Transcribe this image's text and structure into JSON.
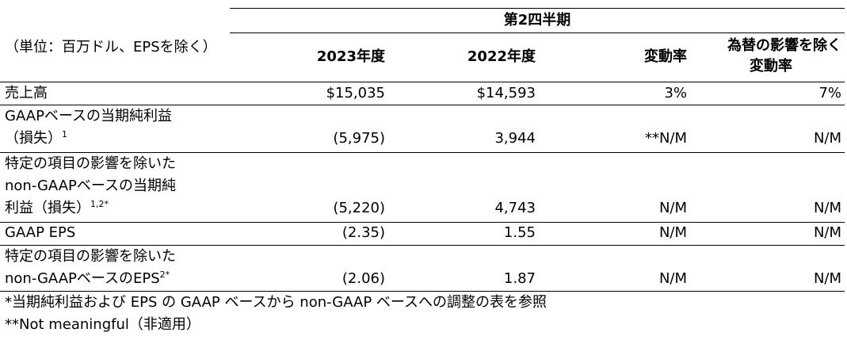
{
  "header": {
    "period_title": "第2四半期",
    "unit_label": "（単位：百万ドル、EPSを除く）",
    "columns": [
      "2023年度",
      "2022年度",
      "変動率",
      "為替の影響を除く変動率"
    ],
    "fx_col_line1": "為替の影響を除く",
    "fx_col_line2": "変動率"
  },
  "rows": [
    {
      "label": "売上高",
      "sup": "",
      "values": [
        "$15,035",
        "$14,593",
        "3%",
        "7%"
      ]
    },
    {
      "label": "GAAPベースの当期純利益（損失）",
      "label_line1": "GAAPベースの当期純利益",
      "label_line2": "（損失）",
      "sup": "1",
      "values": [
        "(5,975)",
        "3,944",
        "**N/M",
        "N/M"
      ]
    },
    {
      "label": "特定の項目の影響を除いたnon-GAAPベースの当期純利益（損失）",
      "label_line1": "特定の項目の影響を除いた",
      "label_line2": "non-GAAPベースの当期純",
      "label_line3": "利益（損失）",
      "sup": "1,2*",
      "values": [
        "(5,220)",
        "4,743",
        "N/M",
        "N/M"
      ]
    },
    {
      "label": "GAAP EPS",
      "sup": "",
      "values": [
        "(2.35)",
        "1.55",
        "N/M",
        "N/M"
      ]
    },
    {
      "label": "特定の項目の影響を除いたnon-GAAPベースのEPS",
      "label_line1": "特定の項目の影響を除いた",
      "label_line2": "non-GAAPベースのEPS",
      "sup": "2*",
      "values": [
        "(2.06)",
        "1.87",
        "N/M",
        "N/M"
      ]
    }
  ],
  "footnotes": [
    "*当期純利益および EPS の GAAP ベースから non-GAAP ベースへの調整の表を参照",
    "**Not meaningful（非適用）"
  ]
}
